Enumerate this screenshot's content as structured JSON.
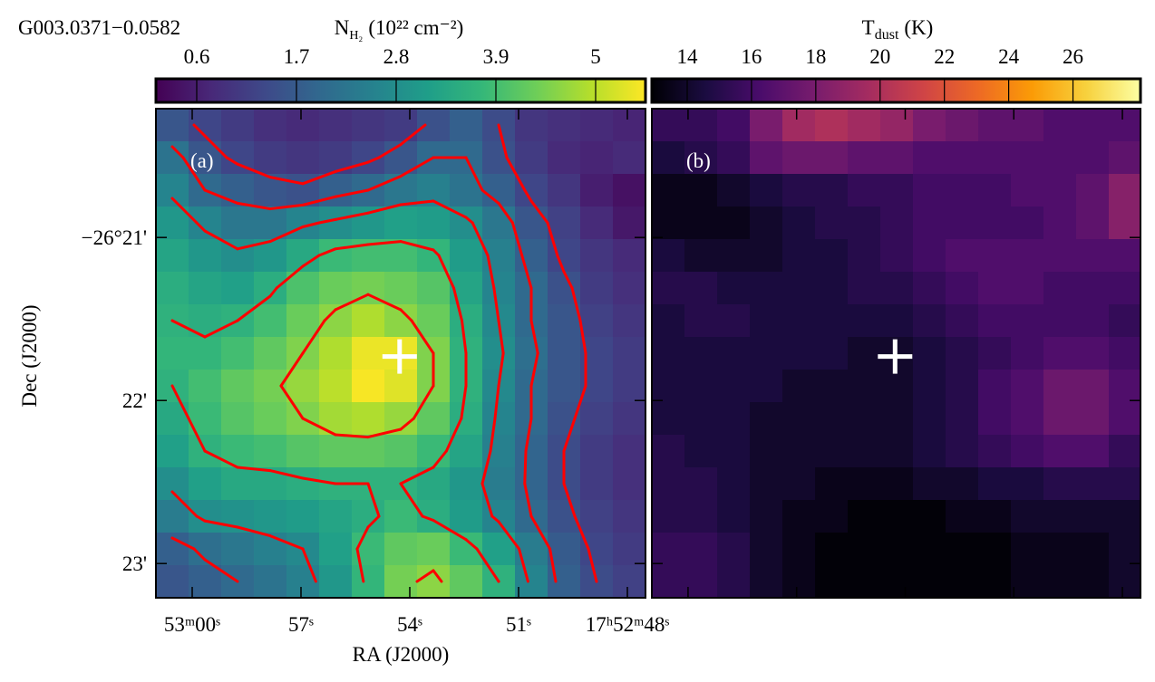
{
  "chart_data": [
    {
      "type": "heatmap",
      "title": "G003.0371−0.0582",
      "panel_label": "(a)",
      "colorbar_label": {
        "symbol": "N",
        "subscript": "H₂",
        "unit": "(10²² cm⁻²)"
      },
      "colormap": "viridis",
      "clim": [
        0.15,
        5.55
      ],
      "cticks": [
        0.6,
        1.7,
        2.8,
        3.9,
        5.0
      ],
      "x_label": "RA (J2000)",
      "y_label": "Dec (J2000)",
      "xlim": [
        61,
        47.5
      ],
      "xticks": [
        {
          "value": 60,
          "label": "53ᵐ00ˢ"
        },
        {
          "value": 57,
          "label": "57ˢ"
        },
        {
          "value": 54,
          "label": "54ˢ"
        },
        {
          "value": 51,
          "label": "51ˢ"
        },
        {
          "value": 48,
          "label": "17ʰ52ᵐ48ˢ"
        }
      ],
      "ylim": [
        23.21,
        20.21
      ],
      "yticks": [
        {
          "value": 21,
          "label": "−26°21'"
        },
        {
          "value": 22,
          "label": "22'"
        },
        {
          "value": 23,
          "label": "23'"
        }
      ],
      "marker": {
        "ra": 54.28,
        "dec": 21.73,
        "color": "#ffffff"
      },
      "contour_color": "#ff0000",
      "contour_levels": [
        1.4,
        2.0,
        2.7,
        3.6,
        4.5
      ],
      "grid": [
        [
          1.6,
          1.3,
          1.1,
          0.9,
          0.8,
          0.9,
          1.0,
          1.1,
          1.5,
          1.8,
          1.4,
          1.0,
          0.9,
          0.8,
          0.7
        ],
        [
          2.2,
          1.6,
          1.3,
          1.1,
          1.0,
          1.1,
          1.3,
          1.6,
          2.0,
          2.0,
          1.5,
          1.1,
          0.8,
          0.7,
          0.8
        ],
        [
          2.6,
          2.0,
          1.8,
          1.6,
          1.5,
          1.8,
          2.0,
          2.3,
          2.5,
          2.2,
          1.8,
          1.3,
          1.0,
          0.6,
          0.4
        ],
        [
          3.0,
          2.6,
          2.3,
          2.3,
          2.6,
          2.8,
          3.0,
          3.2,
          3.1,
          2.8,
          2.3,
          1.6,
          1.2,
          0.8,
          0.5
        ],
        [
          3.3,
          3.0,
          2.8,
          3.0,
          3.4,
          3.8,
          3.9,
          3.9,
          3.7,
          3.1,
          2.5,
          1.8,
          1.3,
          1.0,
          0.8
        ],
        [
          3.5,
          3.3,
          3.2,
          3.5,
          4.0,
          4.3,
          4.4,
          4.3,
          4.1,
          3.3,
          2.6,
          2.0,
          1.5,
          1.1,
          0.9
        ],
        [
          3.6,
          3.5,
          3.6,
          3.9,
          4.3,
          4.6,
          4.9,
          4.6,
          4.3,
          3.5,
          2.7,
          2.0,
          1.6,
          1.2,
          1.0
        ],
        [
          3.7,
          3.7,
          3.9,
          4.2,
          4.5,
          4.9,
          5.4,
          5.4,
          4.5,
          3.6,
          2.8,
          2.1,
          1.6,
          1.3,
          1.1
        ],
        [
          3.6,
          3.9,
          4.2,
          4.4,
          4.7,
          5.0,
          5.5,
          5.3,
          4.5,
          3.6,
          2.7,
          2.0,
          1.6,
          1.3,
          1.1
        ],
        [
          3.4,
          3.8,
          4.1,
          4.3,
          4.5,
          4.8,
          4.9,
          4.7,
          4.2,
          3.5,
          2.6,
          2.0,
          1.5,
          1.2,
          1.0
        ],
        [
          3.2,
          3.6,
          3.8,
          3.9,
          4.1,
          4.2,
          4.2,
          4.1,
          3.8,
          3.3,
          2.5,
          1.9,
          1.4,
          1.1,
          0.9
        ],
        [
          2.8,
          3.2,
          3.4,
          3.4,
          3.5,
          3.6,
          3.6,
          3.6,
          3.4,
          3.0,
          2.4,
          1.9,
          1.4,
          1.1,
          0.9
        ],
        [
          2.4,
          2.8,
          2.9,
          3.0,
          3.1,
          3.3,
          3.5,
          3.8,
          3.5,
          3.1,
          2.6,
          2.0,
          1.5,
          1.2,
          1.0
        ],
        [
          1.8,
          2.1,
          2.3,
          2.5,
          2.7,
          3.2,
          3.8,
          4.2,
          4.3,
          3.8,
          3.2,
          2.4,
          1.7,
          1.3,
          1.1
        ],
        [
          1.6,
          1.8,
          2.0,
          2.2,
          2.5,
          3.0,
          3.7,
          4.4,
          4.6,
          4.2,
          3.6,
          2.6,
          1.8,
          1.4,
          1.2
        ]
      ]
    },
    {
      "type": "heatmap",
      "panel_label": "(b)",
      "colorbar_label": {
        "symbol": "T",
        "subscript": "dust",
        "unit": "(K)"
      },
      "colormap": "inferno",
      "clim": [
        12.9,
        28.1
      ],
      "cticks": [
        14,
        16,
        18,
        20,
        22,
        24,
        26
      ],
      "grid": [
        [
          15.5,
          15.5,
          16,
          18,
          19.5,
          20,
          19.5,
          19,
          18,
          17.5,
          17,
          17,
          16.5,
          16.5,
          16.5
        ],
        [
          14.5,
          15,
          15.5,
          17,
          17.5,
          17.5,
          17,
          17,
          16.5,
          16.5,
          16.5,
          16.5,
          16.5,
          16.5,
          17
        ],
        [
          13.5,
          13.5,
          14,
          14.5,
          15,
          15,
          15.5,
          15.5,
          16,
          16,
          16,
          16.5,
          16.5,
          17,
          18.5
        ],
        [
          13.5,
          13.5,
          13.5,
          14,
          14.5,
          15,
          15,
          15.5,
          16,
          16,
          16,
          16,
          16.5,
          17,
          18.5
        ],
        [
          14.5,
          14,
          14,
          14,
          14.5,
          14.5,
          15,
          15.5,
          16,
          16.5,
          16.5,
          16.5,
          16.5,
          16.5,
          16.5
        ],
        [
          15,
          15,
          14.5,
          14.5,
          14.5,
          14.5,
          15,
          15,
          15.5,
          16,
          16.5,
          16.5,
          16,
          16,
          16
        ],
        [
          14.5,
          15,
          15,
          14.5,
          14.5,
          14.5,
          14.5,
          14.5,
          15,
          15.5,
          16,
          16,
          16,
          16,
          15.5
        ],
        [
          14.5,
          14.5,
          14.5,
          14.5,
          14.5,
          14.5,
          14,
          14,
          14.5,
          15,
          15.5,
          16,
          16.5,
          16.5,
          16
        ],
        [
          14.5,
          14.5,
          14.5,
          14.5,
          14,
          14,
          14,
          14,
          14.5,
          15,
          16,
          16.5,
          17.5,
          17.5,
          16.5
        ],
        [
          14.5,
          14.5,
          14.5,
          14,
          14,
          14,
          14,
          14,
          14.5,
          15,
          16,
          16.5,
          17.5,
          17.5,
          16.5
        ],
        [
          15,
          14.5,
          14.5,
          14,
          14,
          14,
          14,
          14,
          14.5,
          15,
          15.5,
          16,
          16.5,
          16.5,
          15.5
        ],
        [
          15,
          15,
          14.5,
          14,
          14,
          13.5,
          13.5,
          13.5,
          14,
          14,
          14.5,
          14.5,
          15,
          15,
          15
        ],
        [
          15,
          15,
          14.5,
          14,
          13.5,
          13.5,
          13,
          13,
          13,
          13.5,
          13.5,
          14,
          14,
          14,
          14
        ],
        [
          15.5,
          15.5,
          15,
          14,
          13.5,
          13,
          13,
          13,
          13,
          13,
          13,
          13.5,
          13.5,
          13.5,
          14
        ],
        [
          15.5,
          15.5,
          15,
          14,
          13.5,
          13,
          13,
          13,
          13,
          13,
          13,
          13.5,
          13.5,
          13.5,
          14
        ]
      ]
    }
  ]
}
